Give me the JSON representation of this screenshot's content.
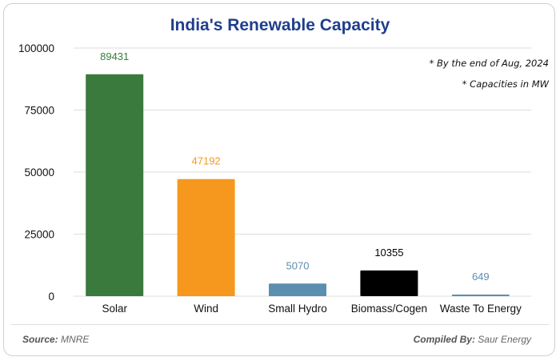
{
  "chart_data": {
    "type": "bar",
    "title": "India's Renewable Capacity",
    "categories": [
      "Solar",
      "Wind",
      "Small Hydro",
      "Biomass/Cogen",
      "Waste To Energy"
    ],
    "values": [
      89431,
      47192,
      5070,
      10355,
      649
    ],
    "value_labels": [
      "89431",
      "47192",
      "5070",
      "10355",
      "649"
    ],
    "bar_colors": [
      "#3a7a3d",
      "#f5981d",
      "#5b8fb0",
      "#000000",
      "#5b8fb0"
    ],
    "label_colors": [
      "#3a7a3d",
      "#f5981d",
      "#5b8fb0",
      "#000000",
      "#5b8fb0"
    ],
    "yticks": [
      0,
      25000,
      50000,
      75000,
      100000
    ],
    "ytick_labels": [
      "0",
      "25000",
      "50000",
      "75000",
      "100000"
    ],
    "ylim": [
      0,
      100000
    ],
    "xlabel": "",
    "ylabel": "",
    "grid": true,
    "notes": [
      "* By the end of Aug, 2024",
      "* Capacities in MW"
    ]
  },
  "footer": {
    "source_label": "Source:",
    "source_value": "MNRE",
    "compiled_label": "Compiled By:",
    "compiled_value": "Saur Energy"
  },
  "colors": {
    "title": "#1f3e8c",
    "grid": "#dddddd"
  }
}
